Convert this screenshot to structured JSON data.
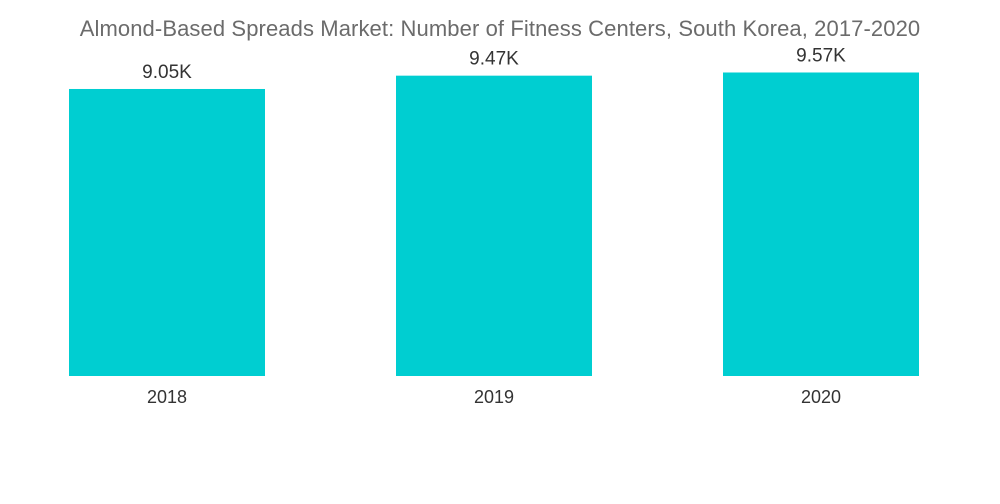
{
  "chart_data": {
    "type": "bar",
    "title": "Almond-Based Spreads Market: Number of Fitness Centers, South Korea, 2017-2020",
    "categories": [
      "2018",
      "2019",
      "2020"
    ],
    "values": [
      9.05,
      9.47,
      9.57
    ],
    "value_labels": [
      "9.05K",
      "9.47K",
      "9.57K"
    ],
    "xlabel": "",
    "ylabel": "",
    "ylim": [
      0,
      10.5
    ],
    "grid": false,
    "legend": "none",
    "bar_color": "#00ced1"
  }
}
